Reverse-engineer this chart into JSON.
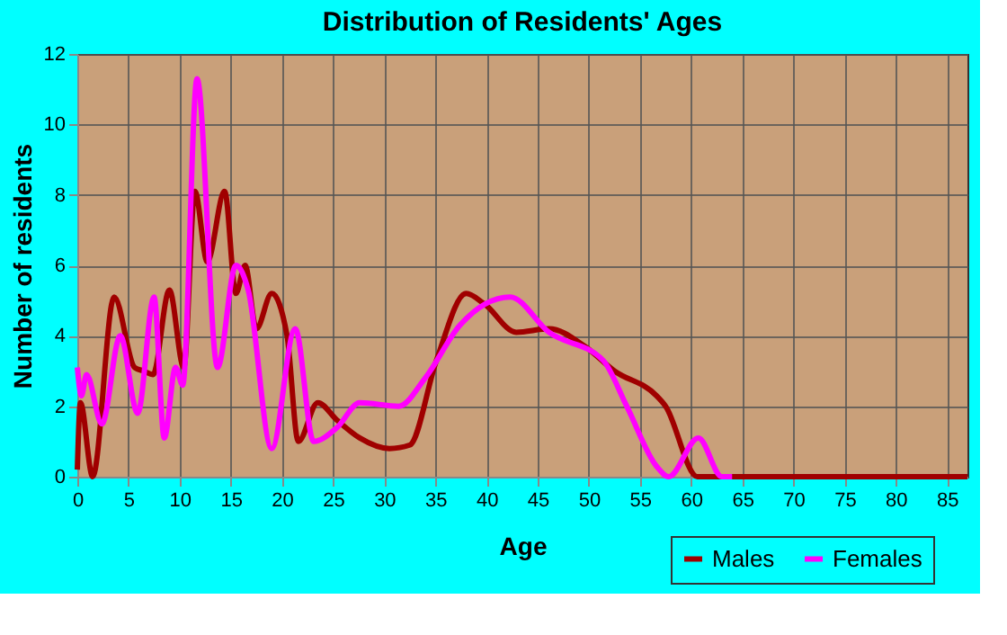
{
  "chart_data": {
    "type": "line",
    "title": "Distribution of Residents' Ages",
    "xlabel": "Age",
    "ylabel": "Number of residents",
    "xlim": [
      0,
      87
    ],
    "xticks": [
      0,
      5,
      10,
      15,
      20,
      25,
      30,
      35,
      40,
      45,
      50,
      55,
      60,
      65,
      70,
      75,
      80,
      85
    ],
    "ylim": [
      0,
      12
    ],
    "yticks": [
      0,
      2,
      4,
      6,
      8,
      10,
      12
    ],
    "grid": true,
    "legend": "bottom right",
    "marker": "none",
    "line_style": "solid",
    "series": [
      {
        "name": "Males",
        "color": "#a00000",
        "x": [
          0,
          0.3,
          1.5,
          3.6,
          5.6,
          6.5,
          7.4,
          9,
          10.4,
          11.5,
          12.7,
          14.4,
          15.5,
          16.4,
          17.5,
          19,
          20.5,
          21.6,
          23.5,
          25.4,
          27.6,
          30.5,
          32.5,
          35.1,
          38,
          39.8,
          42.9,
          46.1,
          49.6,
          52.5,
          56.6,
          57.5,
          60.6,
          65,
          70,
          75,
          80,
          87
        ],
        "values": [
          0.2,
          2.1,
          0,
          5.1,
          3.1,
          3,
          2.9,
          5.3,
          3.1,
          8.1,
          6.1,
          8.1,
          5.2,
          6,
          4.2,
          5.2,
          4,
          1,
          2.1,
          1.6,
          1.1,
          0.8,
          0.9,
          3.3,
          5.2,
          4.9,
          4.1,
          4.2,
          3.7,
          3,
          2.3,
          2,
          0,
          0,
          0,
          0,
          0,
          0
        ]
      },
      {
        "name": "Females",
        "color": "#ff00ff",
        "x": [
          0,
          0.4,
          0.9,
          2.4,
          4.2,
          5.9,
          7.5,
          8.5,
          9.6,
          10.3,
          11.7,
          13.7,
          15.5,
          16.7,
          19,
          21.3,
          23.1,
          25.4,
          27.6,
          31.4,
          34,
          37.4,
          42.3,
          46.1,
          51.4,
          53.7,
          56.6,
          57.8,
          60.7,
          63,
          64
        ],
        "values": [
          3.1,
          2.3,
          2.9,
          1.5,
          4,
          1.8,
          5.1,
          1.1,
          3.1,
          2.6,
          11.3,
          3.1,
          6,
          5.3,
          0.8,
          4.2,
          1,
          1.4,
          2.1,
          2,
          2.8,
          4.3,
          5.1,
          4.1,
          3.3,
          2,
          0.3,
          0,
          1.1,
          0,
          0
        ]
      }
    ]
  }
}
